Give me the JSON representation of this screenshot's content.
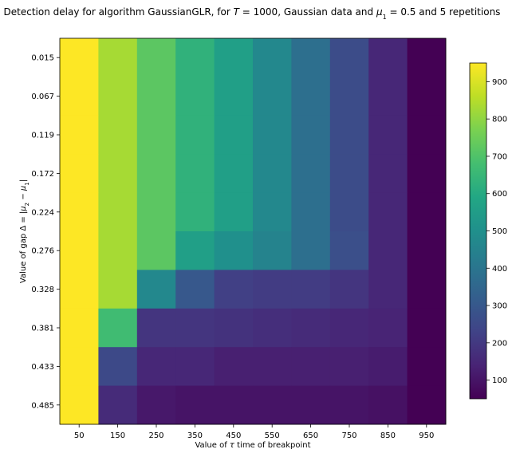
{
  "chart_data": {
    "type": "heatmap",
    "title_prefix": "Detection delay for algorithm GaussianGLR, for ",
    "title_T": "T",
    "title_eq1": " = 1000, Gaussian data and ",
    "title_mu": "μ",
    "title_mu_sub": "1",
    "title_suffix": " = 0.5 and 5 repetitions",
    "xlabel_prefix": "Value of ",
    "xlabel_tau": "τ",
    "xlabel_suffix": " time of breakpoint",
    "ylabel_prefix": "Value of gap Δ = |",
    "ylabel_mu2": "μ",
    "ylabel_sub2": "2",
    "ylabel_minus": " − ",
    "ylabel_mu1": "μ",
    "ylabel_sub1": "1",
    "ylabel_close": "|",
    "x_categories": [
      "50",
      "150",
      "250",
      "350",
      "450",
      "550",
      "650",
      "750",
      "850",
      "950"
    ],
    "y_categories": [
      "0.015",
      "0.067",
      "0.119",
      "0.172",
      "0.224",
      "0.276",
      "0.328",
      "0.381",
      "0.433",
      "0.485"
    ],
    "values": [
      [
        950,
        830,
        720,
        630,
        560,
        470,
        380,
        260,
        150,
        50
      ],
      [
        950,
        830,
        720,
        630,
        560,
        470,
        380,
        260,
        150,
        50
      ],
      [
        950,
        830,
        720,
        630,
        560,
        470,
        380,
        260,
        150,
        50
      ],
      [
        950,
        830,
        720,
        630,
        560,
        470,
        380,
        260,
        150,
        50
      ],
      [
        950,
        830,
        720,
        630,
        560,
        470,
        380,
        260,
        150,
        50
      ],
      [
        950,
        830,
        720,
        560,
        500,
        450,
        380,
        270,
        150,
        50
      ],
      [
        950,
        830,
        470,
        300,
        220,
        210,
        210,
        190,
        150,
        50
      ],
      [
        950,
        670,
        190,
        190,
        180,
        170,
        160,
        150,
        140,
        50
      ],
      [
        950,
        250,
        150,
        150,
        130,
        130,
        130,
        130,
        120,
        50
      ],
      [
        950,
        160,
        110,
        100,
        100,
        100,
        100,
        100,
        90,
        50
      ]
    ],
    "colorbar": {
      "colormap": "viridis",
      "min": 50,
      "max": 950,
      "ticks": [
        100,
        200,
        300,
        400,
        500,
        600,
        700,
        800,
        900
      ]
    }
  }
}
